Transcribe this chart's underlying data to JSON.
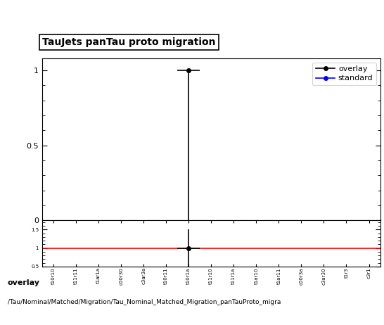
{
  "title": "TauJets panTau proto migration",
  "legend_entries": [
    "overlay",
    "standard"
  ],
  "legend_colors": [
    "black",
    "blue"
  ],
  "main_ylim": [
    0,
    1.0
  ],
  "main_yticks": [
    0,
    0.5,
    1
  ],
  "ratio_ylim": [
    0.5,
    1.75
  ],
  "ratio_yticks": [
    0.5,
    1,
    1.5
  ],
  "n_bins": 15,
  "point_bin": 6,
  "x_labels": [
    "t10r10",
    "t11r11",
    "t1ar1a",
    "c00r30",
    "c3ar3a",
    "t10r11",
    "t10r1a",
    "t11r10",
    "t11r1a",
    "t1ar10",
    "t1ar11",
    "c00r3a",
    "c3ar30",
    "t1r3",
    "c3r1"
  ],
  "footer_line1": "overlay",
  "footer_line2": "/Tau/Nominal/Matched/Migration/Tau_Nominal_Matched_Migration_panTauProto_migra"
}
